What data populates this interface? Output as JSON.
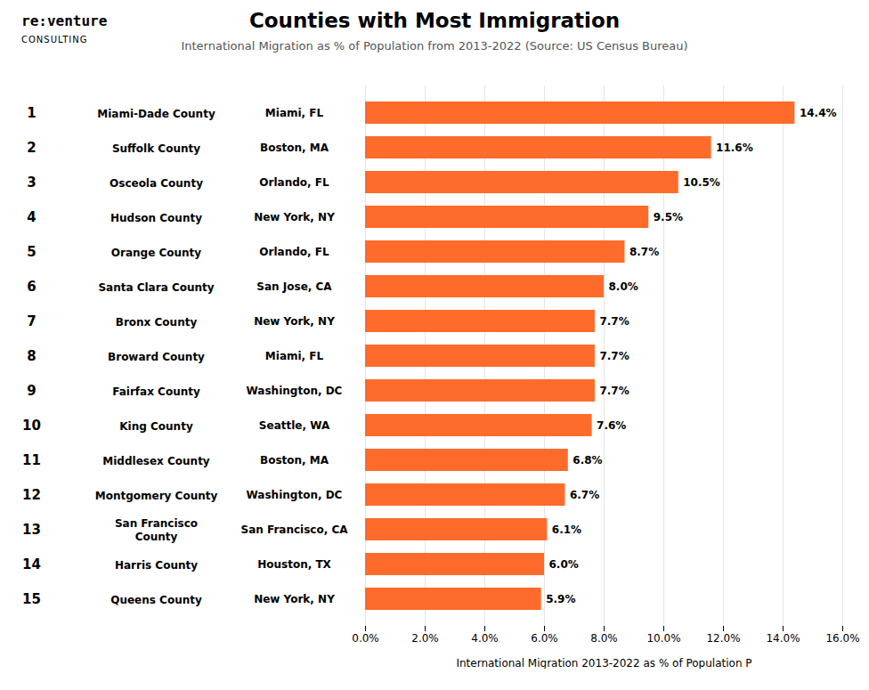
{
  "chart_data": {
    "type": "bar",
    "orientation": "horizontal",
    "title": "Counties with Most Immigration",
    "subtitle": "International Migration as % of Population from 2013-2022 (Source: US Census Bureau)",
    "annotations": [
      "re:venture",
      "CONSULTING"
    ],
    "xlabel": "International Migration 2013-2022 as % of Population Ρ",
    "categories": [
      "Miami-Dade County",
      "Suffolk County",
      "Osceola County",
      "Hudson County",
      "Orange County",
      "Santa Clara County",
      "Bronx County",
      "Broward County",
      "Fairfax County",
      "King County",
      "Middlesex County",
      "Montgomery County",
      "San Francisco\nCounty",
      "Harris County",
      "Queens County"
    ],
    "ranks": [
      1,
      2,
      3,
      4,
      5,
      6,
      7,
      8,
      9,
      10,
      11,
      12,
      13,
      14,
      15
    ],
    "cities": [
      "Miami, FL",
      "Boston, MA",
      "Orlando, FL",
      "New York, NY",
      "Orlando, FL",
      "San Jose, CA",
      "New York, NY",
      "Miami, FL",
      "Washington, DC",
      "Seattle, WA",
      "Boston, MA",
      "Washington, DC",
      "San Francisco, CA",
      "Houston, TX",
      "New York, NY"
    ],
    "values": [
      14.4,
      11.6,
      10.5,
      9.5,
      8.7,
      8.0,
      7.7,
      7.7,
      7.7,
      7.6,
      6.8,
      6.7,
      6.1,
      6.0,
      5.9
    ],
    "value_labels": [
      "14.4%",
      "11.6%",
      "10.5%",
      "9.5%",
      "8.7%",
      "8.0%",
      "7.7%",
      "7.7%",
      "7.7%",
      "7.6%",
      "6.8%",
      "6.7%",
      "6.1%",
      "6.0%",
      "5.9%"
    ],
    "data_labels": true,
    "color": "#FF6B2B",
    "xlim": [
      0,
      16.0
    ],
    "xticks": [
      {
        "value": 0.0,
        "label": "0.0%"
      },
      {
        "value": 2.0,
        "label": "2.0%"
      },
      {
        "value": 4.0,
        "label": "4.0%"
      },
      {
        "value": 6.0,
        "label": "6.0%"
      },
      {
        "value": 8.0,
        "label": "8.0%"
      },
      {
        "value": 10.0,
        "label": "10.0%"
      },
      {
        "value": 12.0,
        "label": "12.0%"
      },
      {
        "value": 14.0,
        "label": "14.0%"
      },
      {
        "value": 16.0,
        "label": "16.0%"
      }
    ],
    "grid": true
  }
}
